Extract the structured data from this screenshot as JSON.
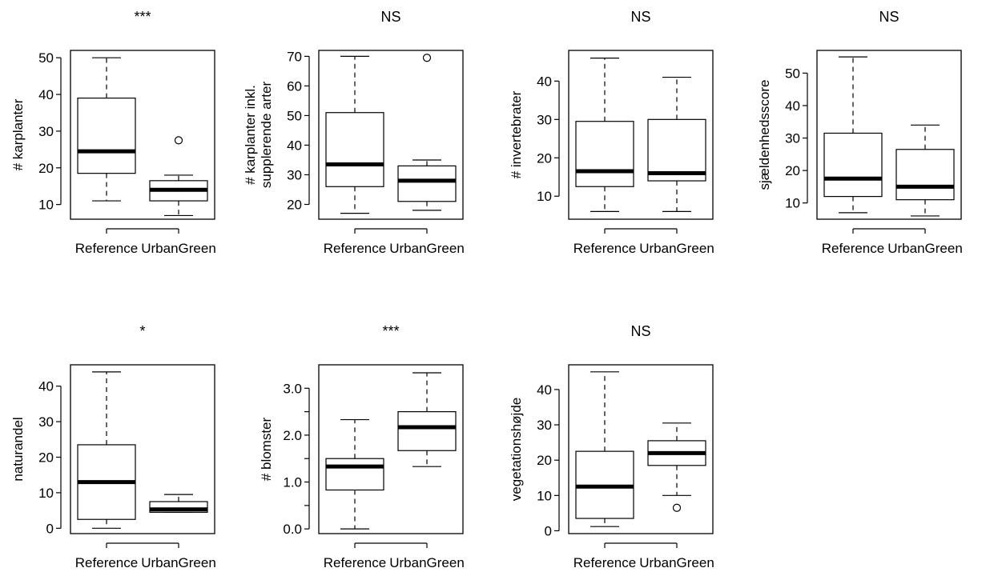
{
  "chart_data": [
    {
      "type": "boxplot",
      "title": "***",
      "ylabel": [
        "# karplanter"
      ],
      "categories": [
        "Reference",
        "UrbanGreen"
      ],
      "ylim": [
        6,
        52
      ],
      "yticks": [
        10,
        20,
        30,
        40,
        50
      ],
      "tick_labels": [
        "10",
        "20",
        "30",
        "40",
        "50"
      ],
      "boxes": [
        {
          "whisker_low": 11,
          "q1": 18.5,
          "median": 24.5,
          "q3": 39,
          "whisker_high": 50,
          "outliers": []
        },
        {
          "whisker_low": 7,
          "q1": 11,
          "median": 14,
          "q3": 16.5,
          "whisker_high": 18,
          "outliers": [
            27.5
          ]
        }
      ]
    },
    {
      "type": "boxplot",
      "title": "NS",
      "ylabel": [
        "# karplanter inkl.",
        "supplerende arter"
      ],
      "categories": [
        "Reference",
        "UrbanGreen"
      ],
      "ylim": [
        15,
        72
      ],
      "yticks": [
        20,
        30,
        40,
        50,
        60,
        70
      ],
      "tick_labels": [
        "20",
        "30",
        "40",
        "50",
        "60",
        "70"
      ],
      "boxes": [
        {
          "whisker_low": 17,
          "q1": 26,
          "median": 33.5,
          "q3": 51,
          "whisker_high": 70,
          "outliers": []
        },
        {
          "whisker_low": 18,
          "q1": 21,
          "median": 28,
          "q3": 33,
          "whisker_high": 35,
          "outliers": [
            69.5
          ]
        }
      ]
    },
    {
      "type": "boxplot",
      "title": "NS",
      "ylabel": [
        "# invertebrater"
      ],
      "categories": [
        "Reference",
        "UrbanGreen"
      ],
      "ylim": [
        4,
        48
      ],
      "yticks": [
        10,
        20,
        30,
        40
      ],
      "tick_labels": [
        "10",
        "20",
        "30",
        "40"
      ],
      "boxes": [
        {
          "whisker_low": 6,
          "q1": 12.5,
          "median": 16.5,
          "q3": 29.5,
          "whisker_high": 46,
          "outliers": []
        },
        {
          "whisker_low": 6,
          "q1": 14,
          "median": 16,
          "q3": 30,
          "whisker_high": 41,
          "outliers": []
        }
      ]
    },
    {
      "type": "boxplot",
      "title": "NS",
      "ylabel": [
        "sjældenhedsscore"
      ],
      "categories": [
        "Reference",
        "UrbanGreen"
      ],
      "ylim": [
        5,
        57
      ],
      "yticks": [
        10,
        20,
        30,
        40,
        50
      ],
      "tick_labels": [
        "10",
        "20",
        "30",
        "40",
        "50"
      ],
      "boxes": [
        {
          "whisker_low": 7,
          "q1": 12,
          "median": 17.5,
          "q3": 31.5,
          "whisker_high": 55,
          "outliers": []
        },
        {
          "whisker_low": 6,
          "q1": 11,
          "median": 15,
          "q3": 26.5,
          "whisker_high": 34,
          "outliers": []
        }
      ]
    },
    {
      "type": "boxplot",
      "title": "*",
      "ylabel": [
        "naturandel"
      ],
      "categories": [
        "Reference",
        "UrbanGreen"
      ],
      "ylim": [
        -1.5,
        46
      ],
      "yticks": [
        0,
        10,
        20,
        30,
        40
      ],
      "tick_labels": [
        "0",
        "10",
        "20",
        "30",
        "40"
      ],
      "boxes": [
        {
          "whisker_low": 0,
          "q1": 2.5,
          "median": 13,
          "q3": 23.5,
          "whisker_high": 44,
          "outliers": []
        },
        {
          "whisker_low": 4.5,
          "q1": 4.5,
          "median": 5.3,
          "q3": 7.5,
          "whisker_high": 9.5,
          "outliers": []
        }
      ]
    },
    {
      "type": "boxplot",
      "title": "***",
      "ylabel": [
        "# blomster"
      ],
      "categories": [
        "Reference",
        "UrbanGreen"
      ],
      "ylim": [
        -0.1,
        3.5
      ],
      "yticks": [
        0,
        0.5,
        1,
        1.5,
        2,
        2.5,
        3
      ],
      "tick_labels": [
        "0.0",
        "",
        "1.0",
        "",
        "2.0",
        "",
        "3.0"
      ],
      "boxes": [
        {
          "whisker_low": 0,
          "q1": 0.83,
          "median": 1.33,
          "q3": 1.5,
          "whisker_high": 2.33,
          "outliers": []
        },
        {
          "whisker_low": 1.33,
          "q1": 1.67,
          "median": 2.17,
          "q3": 2.5,
          "whisker_high": 3.33,
          "outliers": []
        }
      ]
    },
    {
      "type": "boxplot",
      "title": "NS",
      "ylabel": [
        "vegetationshøjde"
      ],
      "categories": [
        "Reference",
        "UrbanGreen"
      ],
      "ylim": [
        -0.8,
        47
      ],
      "yticks": [
        0,
        10,
        20,
        30,
        40
      ],
      "tick_labels": [
        "0",
        "10",
        "20",
        "30",
        "40"
      ],
      "boxes": [
        {
          "whisker_low": 1.2,
          "q1": 3.5,
          "median": 12.5,
          "q3": 22.5,
          "whisker_high": 45,
          "outliers": []
        },
        {
          "whisker_low": 10,
          "q1": 18.5,
          "median": 22,
          "q3": 25.5,
          "whisker_high": 30.5,
          "outliers": [
            6.5
          ]
        }
      ]
    }
  ]
}
